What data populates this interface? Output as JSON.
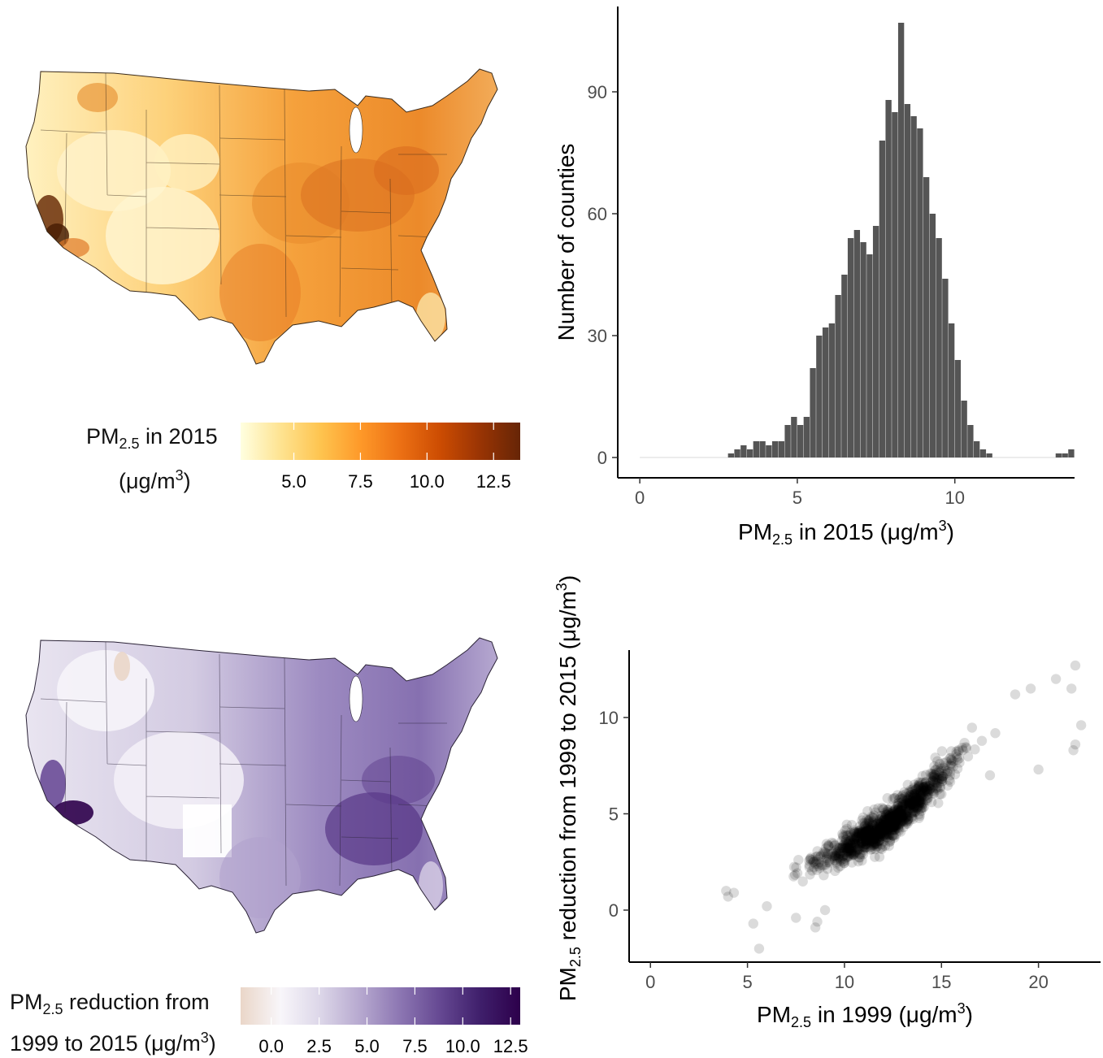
{
  "colors": {
    "bars": "#555555",
    "points": "#000000",
    "axis": "#000000",
    "tick_text": "#4d4d4d",
    "ylorbr_scale": [
      "#ffffe0",
      "#fee391",
      "#fec44f",
      "#fe9929",
      "#ec7014",
      "#cc4c02",
      "#993404",
      "#662506"
    ],
    "purple_scale": [
      "#ead6c8",
      "#f8f6fa",
      "#dcd6e8",
      "#b6a8cf",
      "#8c76b2",
      "#654892",
      "#3f1f6b",
      "#2d004b"
    ]
  },
  "map1": {
    "legend_title_line1": {
      "pre": "PM",
      "sub": "2.5",
      "post": " in 2015"
    },
    "legend_title_line2": {
      "pre": "(μg/m",
      "sup": "3",
      "post": ")"
    },
    "legend_ticks": [
      "5.0",
      "7.5",
      "10.0",
      "12.5"
    ],
    "legend_range": [
      3,
      13.5
    ],
    "legend_tick_values": [
      5,
      7.5,
      10,
      12.5
    ]
  },
  "map2": {
    "legend_title_line1": {
      "pre": "PM",
      "sub": "2.5",
      "post": " reduction from"
    },
    "legend_title_line2": {
      "pre": "1999 to 2015 (μg/m",
      "sup": "3",
      "post": ")"
    },
    "legend_ticks": [
      "0.0",
      "2.5",
      "5.0",
      "7.5",
      "10.0",
      "12.5"
    ],
    "legend_range": [
      -1.6,
      13
    ],
    "legend_tick_values": [
      0,
      2.5,
      5,
      7.5,
      10,
      12.5
    ]
  },
  "chart_data": [
    {
      "type": "bar",
      "subtype": "histogram",
      "bin_width": 0.2,
      "bin_start": 0.0,
      "values": [
        0,
        0,
        0,
        0,
        0,
        0,
        0,
        0,
        0,
        0,
        0,
        0,
        0,
        0,
        1,
        2,
        3,
        2,
        4,
        4,
        3,
        4,
        4,
        8,
        10,
        8,
        10,
        22,
        30,
        32,
        33,
        40,
        45,
        54,
        56,
        53,
        50,
        57,
        78,
        88,
        85,
        107,
        87,
        84,
        81,
        69,
        60,
        54,
        44,
        33,
        24,
        14,
        8,
        4,
        2,
        1,
        0,
        0,
        0,
        0,
        0,
        0,
        0,
        0,
        0,
        0,
        1,
        1,
        2
      ],
      "x_title": {
        "pre": "PM",
        "sub": "2.5",
        "post": " in 2015 (μg/m",
        "sup": "3",
        "post2": ")"
      },
      "y_title": "Number of counties",
      "x_ticks": [
        "0",
        "5",
        "10"
      ],
      "x_tick_values": [
        0,
        5,
        10
      ],
      "y_ticks": [
        "0",
        "30",
        "60",
        "90"
      ],
      "y_tick_values": [
        0,
        30,
        60,
        90
      ],
      "xlim": [
        -0.7,
        13.8
      ],
      "ylim": [
        -5,
        111
      ],
      "grid": false
    },
    {
      "type": "scatter",
      "x_title": {
        "pre": "PM",
        "sub": "2.5",
        "post": " in 1999 (μg/m",
        "sup": "3",
        "post2": ")"
      },
      "y_title": {
        "pre": "PM",
        "sub": "2.5",
        "post": " reduction from 1999 to 2015 (μg/m",
        "sup": "3",
        "post2": ")"
      },
      "x_ticks": [
        "0",
        "5",
        "10",
        "15",
        "20"
      ],
      "x_tick_values": [
        0,
        5,
        10,
        15,
        20
      ],
      "y_ticks": [
        "0",
        "5",
        "10"
      ],
      "y_tick_values": [
        0,
        5,
        10
      ],
      "xlim": [
        -1.1,
        23.2
      ],
      "ylim": [
        -2.7,
        13.5
      ],
      "grid": false,
      "point_alpha": 0.14,
      "outliers": [
        [
          5.6,
          -2.0
        ],
        [
          5.3,
          -0.7
        ],
        [
          8.5,
          -0.9
        ],
        [
          8.6,
          -0.6
        ],
        [
          20.0,
          7.3
        ],
        [
          21.9,
          8.6
        ],
        [
          21.8,
          8.3
        ],
        [
          22.2,
          9.6
        ],
        [
          21.7,
          11.5
        ],
        [
          21.9,
          12.7
        ],
        [
          20.9,
          12.0
        ],
        [
          19.6,
          11.5
        ],
        [
          4.0,
          0.7
        ],
        [
          4.3,
          0.9
        ],
        [
          3.9,
          1.0
        ],
        [
          6.0,
          0.2
        ],
        [
          7.5,
          -0.4
        ],
        [
          9.0,
          0.0
        ],
        [
          17.5,
          7.0
        ],
        [
          18.8,
          11.2
        ]
      ],
      "trend": [
        [
          4,
          0.6
        ],
        [
          6,
          1.2
        ],
        [
          8,
          2.2
        ],
        [
          10,
          3.2
        ],
        [
          12,
          4.2
        ],
        [
          14,
          6.0
        ],
        [
          16,
          8.3
        ],
        [
          18,
          10.0
        ],
        [
          19.5,
          11.0
        ]
      ]
    }
  ]
}
